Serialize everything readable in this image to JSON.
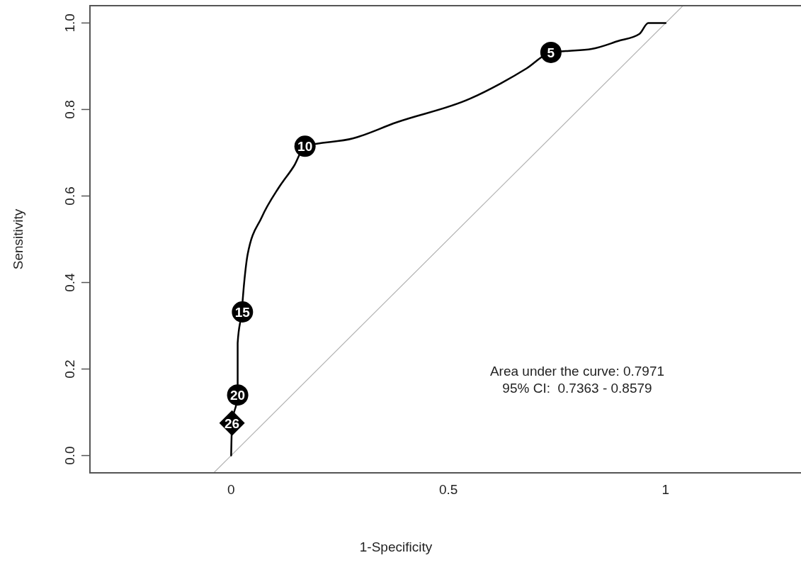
{
  "chart_data": {
    "type": "line",
    "xlabel": "1-Specificity",
    "ylabel": "Sensitivity",
    "xlim": [
      -0.325,
      1.31
    ],
    "ylim": [
      -0.04,
      1.04
    ],
    "xticks": [
      0,
      0.5,
      1
    ],
    "yticks": [
      {
        "value": 0,
        "label": "0.0"
      },
      0.2,
      0.4,
      0.6,
      0.8,
      {
        "value": 1,
        "label": "1.0"
      }
    ],
    "grid": false,
    "line_style": "solid",
    "series": [
      {
        "color": "#b4b4b4",
        "marker": "none",
        "x": [
          -0.04,
          1.04
        ],
        "values": [
          -0.04,
          1.04
        ]
      },
      {
        "color": "#000000",
        "marker": "none",
        "x": [
          0,
          0.002,
          0.015,
          0.015,
          0.024,
          0.03,
          0.038,
          0.07,
          0.11,
          0.145,
          0.17,
          0.28,
          0.38,
          0.55,
          0.62,
          0.68,
          0.736,
          0.77,
          0.83,
          0.89,
          0.94,
          0.96,
          1.0
        ],
        "values": [
          0,
          0.072,
          0.14,
          0.26,
          0.33,
          0.4,
          0.465,
          0.55,
          0.62,
          0.67,
          0.715,
          0.733,
          0.77,
          0.825,
          0.86,
          0.895,
          0.932,
          0.935,
          0.94,
          0.958,
          0.975,
          1.0,
          1.0
        ]
      },
      {
        "type": "scatter",
        "color": "#000000",
        "marker": "circle",
        "x": [
          0.736,
          0.17,
          0.026,
          0.015
        ],
        "values": [
          0.932,
          0.715,
          0.332,
          0.14
        ]
      },
      {
        "type": "scatter",
        "color": "#000000",
        "marker": "diamond",
        "x": [
          0.002
        ],
        "values": [
          0.075
        ]
      }
    ],
    "annotations": [
      {
        "text": "5",
        "x": 0.736,
        "y": 0.932
      },
      {
        "text": "10",
        "x": 0.17,
        "y": 0.715
      },
      {
        "text": "15",
        "x": 0.026,
        "y": 0.332
      },
      {
        "text": "20",
        "x": 0.015,
        "y": 0.14
      },
      {
        "text": "26",
        "x": 0.002,
        "y": 0.075
      },
      "Area under the curve: 0.7971",
      "95% CI:  0.7363 - 0.8579"
    ]
  }
}
